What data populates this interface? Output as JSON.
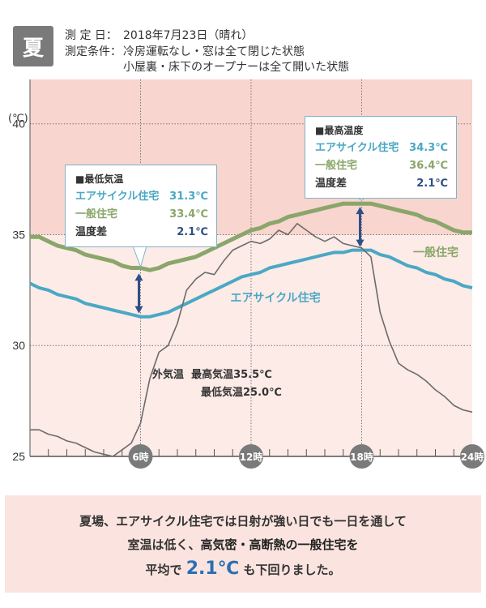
{
  "season_badge": "夏",
  "header": {
    "date_label": "測 定 日：",
    "date_value": "2018年7月23日（晴れ）",
    "cond_label": "測定条件：",
    "cond_line1": "冷房運転なし・窓は全て閉じた状態",
    "cond_line2": "小屋裏・床下のオープナーは全て開いた状態"
  },
  "callout_low": {
    "title": "■最低気温",
    "ac_label": "エアサイクル住宅",
    "ac_value": "31.3℃",
    "gen_label": "一般住宅",
    "gen_value": "33.4℃",
    "diff_label": "温度差",
    "diff_value": "2.1℃"
  },
  "callout_high": {
    "title": "■最高温度",
    "ac_label": "エアサイクル住宅",
    "ac_value": "34.3℃",
    "gen_label": "一般住宅",
    "gen_value": "36.4℃",
    "diff_label": "温度差",
    "diff_value": "2.1℃"
  },
  "outside_note": {
    "label": "外気温",
    "max_label": "最高気温",
    "max_value": "35.5℃",
    "min_label": "最低気温",
    "min_value": "25.0℃"
  },
  "summary": {
    "line1": "夏場、エアサイクル住宅では日射が強い日でも一日を通して",
    "line2_a": "室温は低く、",
    "line2_b": "高気密・高断熱の一般住宅を",
    "line3_a": "平均で",
    "line3_big": "2.1℃",
    "line3_b": "も下回りました。"
  },
  "colors": {
    "aircycle": "#4aa8c4",
    "general": "#8aa66a",
    "outside": "#6b6b6b",
    "arrow": "#2f4f87",
    "bg_high": "#f8d5ce",
    "bg_low": "#fcebe7"
  },
  "chart_data": {
    "type": "line",
    "title": "",
    "xlabel": "",
    "ylabel": "(℃)",
    "ylim": [
      25,
      42
    ],
    "xlim": [
      0,
      24
    ],
    "y_ticks": [
      25,
      30,
      35,
      40
    ],
    "x_tick_labels": [
      {
        "x": 6,
        "label": "6時"
      },
      {
        "x": 12,
        "label": "12時"
      },
      {
        "x": 18,
        "label": "18時"
      },
      {
        "x": 24,
        "label": "24時"
      }
    ],
    "series": [
      {
        "name": "一般住宅",
        "color": "#8aa66a",
        "x": [
          0,
          0.5,
          1,
          1.5,
          2,
          2.5,
          3,
          3.5,
          4,
          4.5,
          5,
          5.5,
          6,
          6.5,
          7,
          7.5,
          8,
          8.5,
          9,
          9.5,
          10,
          10.5,
          11,
          11.5,
          12,
          12.5,
          13,
          13.5,
          14,
          14.5,
          15,
          15.5,
          16,
          16.5,
          17,
          17.5,
          18,
          18.5,
          19,
          19.5,
          20,
          20.5,
          21,
          21.5,
          22,
          22.5,
          23,
          23.5,
          24
        ],
        "y": [
          34.9,
          34.9,
          34.7,
          34.5,
          34.4,
          34.3,
          34.1,
          34.0,
          33.9,
          33.8,
          33.6,
          33.5,
          33.5,
          33.4,
          33.5,
          33.7,
          33.8,
          33.9,
          34.0,
          34.2,
          34.4,
          34.6,
          34.8,
          35.0,
          35.2,
          35.3,
          35.5,
          35.6,
          35.8,
          35.9,
          36.0,
          36.1,
          36.2,
          36.3,
          36.4,
          36.4,
          36.4,
          36.4,
          36.3,
          36.2,
          36.1,
          36.0,
          35.9,
          35.7,
          35.6,
          35.4,
          35.2,
          35.1,
          35.1
        ]
      },
      {
        "name": "エアサイクル住宅",
        "color": "#4aa8c4",
        "x": [
          0,
          0.5,
          1,
          1.5,
          2,
          2.5,
          3,
          3.5,
          4,
          4.5,
          5,
          5.5,
          6,
          6.5,
          7,
          7.5,
          8,
          8.5,
          9,
          9.5,
          10,
          10.5,
          11,
          11.5,
          12,
          12.5,
          13,
          13.5,
          14,
          14.5,
          15,
          15.5,
          16,
          16.5,
          17,
          17.5,
          18,
          18.5,
          19,
          19.5,
          20,
          20.5,
          21,
          21.5,
          22,
          22.5,
          23,
          23.5,
          24
        ],
        "y": [
          32.8,
          32.6,
          32.5,
          32.3,
          32.2,
          32.1,
          31.9,
          31.8,
          31.7,
          31.6,
          31.5,
          31.4,
          31.3,
          31.3,
          31.4,
          31.5,
          31.7,
          31.9,
          32.1,
          32.3,
          32.5,
          32.7,
          32.9,
          33.1,
          33.2,
          33.3,
          33.5,
          33.6,
          33.7,
          33.8,
          33.9,
          34.0,
          34.1,
          34.2,
          34.2,
          34.3,
          34.3,
          34.3,
          34.1,
          34.0,
          33.8,
          33.6,
          33.5,
          33.3,
          33.2,
          33.0,
          32.9,
          32.7,
          32.6
        ]
      },
      {
        "name": "外気温",
        "color": "#6b6b6b",
        "x": [
          0,
          0.5,
          1,
          1.5,
          2,
          2.5,
          3,
          3.5,
          4,
          4.5,
          5,
          5.5,
          6,
          6.5,
          7,
          7.5,
          8,
          8.5,
          9,
          9.5,
          10,
          10.5,
          11,
          11.5,
          12,
          12.5,
          13,
          13.5,
          14,
          14.5,
          15,
          15.5,
          16,
          16.5,
          17,
          17.5,
          18,
          18.5,
          19,
          19.5,
          20,
          20.5,
          21,
          21.5,
          22,
          22.5,
          23,
          23.5,
          24
        ],
        "y": [
          26.2,
          26.2,
          26.0,
          25.9,
          25.7,
          25.6,
          25.4,
          25.2,
          25.1,
          25.0,
          25.3,
          25.6,
          26.5,
          28.5,
          29.7,
          30.0,
          31.0,
          32.5,
          33.0,
          33.3,
          33.2,
          33.8,
          34.3,
          34.5,
          34.7,
          34.6,
          34.8,
          35.2,
          35.0,
          35.5,
          35.2,
          34.9,
          34.7,
          34.9,
          34.6,
          34.5,
          34.4,
          34.0,
          31.5,
          30.2,
          29.2,
          28.9,
          28.7,
          28.4,
          28.0,
          27.7,
          27.3,
          27.1,
          27.0
        ]
      }
    ],
    "annotations": [
      {
        "text": "エアサイクル住宅",
        "series": "エアサイクル住宅"
      },
      {
        "text": "一般住宅",
        "series": "一般住宅"
      }
    ],
    "difference_arrows": [
      {
        "x": 6,
        "y_low": 31.3,
        "y_high": 33.4
      },
      {
        "x": 18,
        "y_low": 34.3,
        "y_high": 36.4
      }
    ],
    "bands": [
      {
        "from": 35,
        "to": 42,
        "color": "#f8d5ce"
      },
      {
        "from": 25,
        "to": 35,
        "color": "#fcebe7"
      }
    ],
    "grid": true
  }
}
